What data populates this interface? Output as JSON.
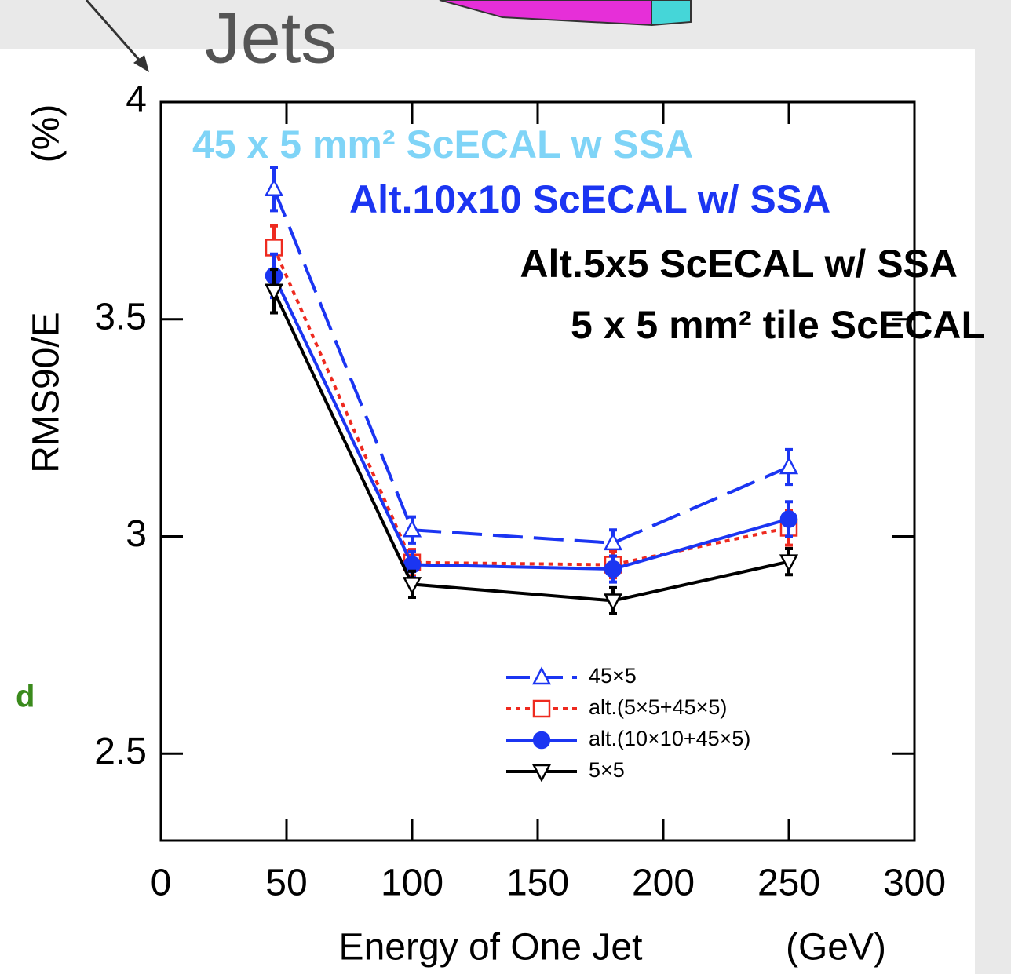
{
  "chart_data": {
    "type": "line",
    "title": "Jets",
    "annotations": [
      {
        "text": "45 x 5 mm² ScECAL w SSA",
        "color": "#7fd4f7"
      },
      {
        "text": "Alt.10x10 ScECAL w/ SSA",
        "color": "#1b35f2"
      },
      {
        "text": "Alt.5x5 ScECAL w/ SSA",
        "color": "#000000"
      },
      {
        "text": "5 x 5 mm² tile ScECAL",
        "color": "#000000"
      }
    ],
    "side_fragment": "d",
    "ylabel": "RMS90/E",
    "ylabel_unit": "(%)",
    "xlabel": "Energy of One Jet",
    "xlabel_unit": "(GeV)",
    "x": [
      45,
      100,
      180,
      250
    ],
    "series": [
      {
        "name": "45×5",
        "color": "#1b35f2",
        "dash": "dashed",
        "marker": "triangle-up",
        "filled": false,
        "values": [
          3.8,
          3.015,
          2.985,
          3.16
        ],
        "errors": [
          0.05,
          0.03,
          0.03,
          0.04
        ]
      },
      {
        "name": "alt.(5×5+45×5)",
        "color": "#ee2a1f",
        "dash": "dotted",
        "marker": "square",
        "filled": false,
        "values": [
          3.665,
          2.94,
          2.935,
          3.02
        ],
        "errors": [
          0.05,
          0.03,
          0.03,
          0.04
        ]
      },
      {
        "name": "alt.(10×10+45×5)",
        "color": "#1b35f2",
        "dash": "solid",
        "marker": "circle",
        "filled": true,
        "values": [
          3.6,
          2.935,
          2.925,
          3.04
        ],
        "errors": [
          0.05,
          0.03,
          0.03,
          0.04
        ]
      },
      {
        "name": "5×5",
        "color": "#000000",
        "dash": "solid",
        "marker": "triangle-down",
        "filled": false,
        "values": [
          3.565,
          2.89,
          2.852,
          2.942
        ],
        "errors": [
          0.05,
          0.03,
          0.03,
          0.03
        ]
      }
    ],
    "xlim": [
      0,
      300
    ],
    "xticks": [
      0,
      50,
      100,
      150,
      200,
      250,
      300
    ],
    "ylim": [
      2.3,
      4
    ],
    "yticks": [
      2.5,
      3,
      3.5,
      4
    ]
  }
}
